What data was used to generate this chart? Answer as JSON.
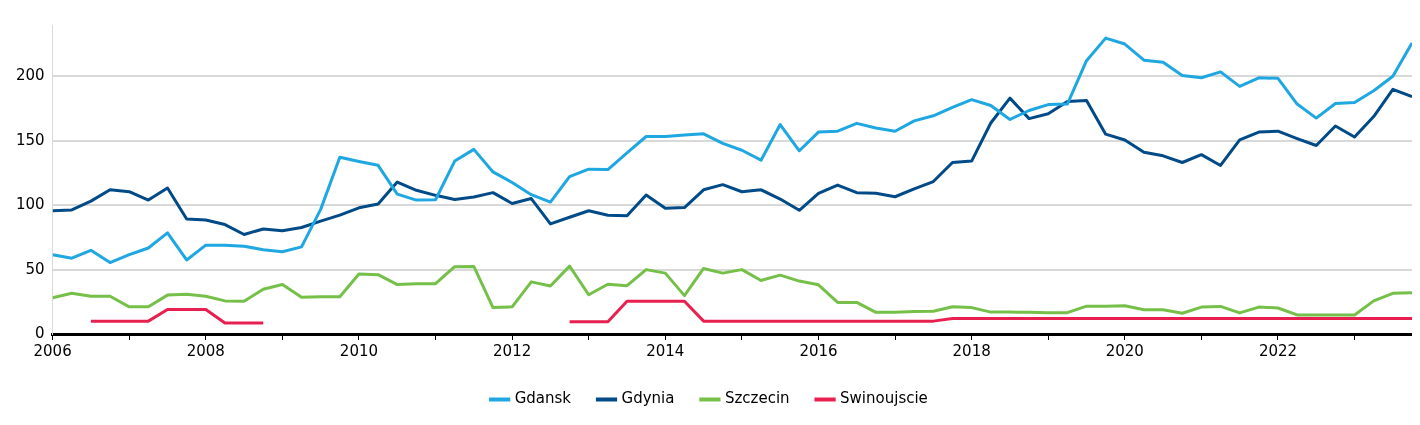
{
  "chart_data": {
    "type": "line",
    "x": [
      2006,
      2006.25,
      2006.5,
      2006.75,
      2007,
      2007.25,
      2007.5,
      2007.75,
      2008,
      2008.25,
      2008.5,
      2008.75,
      2009,
      2009.25,
      2009.5,
      2009.75,
      2010,
      2010.25,
      2010.5,
      2010.75,
      2011,
      2011.25,
      2011.5,
      2011.75,
      2012,
      2012.25,
      2012.5,
      2012.75,
      2013,
      2013.25,
      2013.5,
      2013.75,
      2014,
      2014.25,
      2014.5,
      2014.75,
      2015,
      2015.25,
      2015.5,
      2015.75,
      2016,
      2016.25,
      2016.5,
      2016.75,
      2017,
      2017.25,
      2017.5,
      2017.75,
      2018,
      2018.25,
      2018.5,
      2018.75,
      2019,
      2019.25,
      2019.5,
      2019.75,
      2020,
      2020.25,
      2020.5,
      2020.75,
      2021,
      2021.25,
      2021.5,
      2021.75,
      2022,
      2022.25,
      2022.5,
      2022.75,
      2023,
      2023.25,
      2023.5,
      2023.75
    ],
    "series": [
      {
        "name": "Gdansk",
        "color": "#1ea7e1",
        "values": [
          61.6,
          58.9,
          65,
          55.5,
          61.6,
          66.8,
          78.6,
          57.5,
          69,
          69,
          68.2,
          65.5,
          63.9,
          67.7,
          96.8,
          137.3,
          134,
          131,
          108.6,
          104,
          104.3,
          134.3,
          143.4,
          125.9,
          117.7,
          108.2,
          102.5,
          122.3,
          128,
          127.7,
          140.7,
          153.4,
          153.4,
          154.5,
          155.5,
          148,
          142.7,
          135,
          162.7,
          142.3,
          156.8,
          157.5,
          163.6,
          160,
          157.5,
          165.5,
          169.5,
          176,
          182,
          177.5,
          166.6,
          173.6,
          178.2,
          178.6,
          212.3,
          229.8,
          225.2,
          212.7,
          211,
          200.7,
          199,
          203.6,
          192.3,
          199,
          198.6,
          178.6,
          167.7,
          179,
          179.8,
          188.9,
          200.2,
          226
        ]
      },
      {
        "name": "Gdynia",
        "color": "#004b87",
        "values": [
          95.7,
          96.4,
          103.2,
          112,
          110.5,
          104,
          113.4,
          89.3,
          88.6,
          85,
          77.3,
          81.6,
          80.2,
          82.7,
          87.7,
          92.3,
          98,
          101,
          118,
          111.6,
          107.7,
          104.5,
          106.4,
          109.8,
          101.4,
          105.2,
          85.5,
          90.7,
          95.7,
          92.3,
          91.8,
          108,
          97.7,
          98.2,
          112,
          116,
          110.5,
          112,
          104.8,
          96.1,
          109.3,
          115.7,
          109.8,
          109.3,
          106.6,
          112.7,
          118.4,
          133.2,
          134.3,
          163.9,
          183.2,
          167.3,
          171.1,
          180.5,
          181.4,
          155.2,
          150.7,
          141.1,
          138.4,
          133.2,
          139.3,
          130.9,
          150.7,
          156.8,
          157.5,
          151.8,
          146.4,
          161.6,
          153,
          168.9,
          190,
          184.3
        ]
      },
      {
        "name": "Szczecin",
        "color": "#76c04a",
        "values": [
          28.2,
          31.6,
          29.3,
          29.3,
          21.1,
          21.1,
          30.2,
          30.9,
          29.3,
          25.7,
          25.5,
          34.8,
          38.4,
          28.6,
          28.9,
          28.9,
          46.6,
          46.1,
          38.4,
          39.1,
          39.1,
          52.3,
          52.5,
          20.5,
          21.1,
          40.5,
          37.3,
          52.7,
          30.5,
          38.6,
          37.5,
          50,
          47.3,
          29.8,
          50.9,
          47.3,
          50,
          41.6,
          45.7,
          41.1,
          38.2,
          24.5,
          24.5,
          16.8,
          16.8,
          17.5,
          17.7,
          21.1,
          20.5,
          17,
          17,
          16.8,
          16.6,
          16.6,
          21.6,
          21.6,
          22,
          18.9,
          18.9,
          16.1,
          20.9,
          21.4,
          16.4,
          20.9,
          20.2,
          14.8,
          14.8,
          14.8,
          14.8,
          25.7,
          31.6,
          32
        ]
      },
      {
        "name": "Swinoujscie",
        "color": "#e8204f",
        "values": [
          null,
          null,
          10,
          10,
          10,
          10,
          19,
          19,
          19,
          8.5,
          8.5,
          8.5,
          null,
          null,
          null,
          null,
          null,
          null,
          null,
          null,
          null,
          null,
          null,
          null,
          null,
          null,
          null,
          9.5,
          9.5,
          9.5,
          25.5,
          25.5,
          25.5,
          25.5,
          10,
          10,
          10,
          10,
          10,
          10,
          10,
          10,
          10,
          10,
          10,
          10,
          10,
          12,
          12,
          12,
          12,
          12,
          12,
          12,
          12,
          12,
          12,
          12,
          12,
          12,
          12,
          12,
          12,
          12,
          12,
          12,
          12,
          12,
          12,
          12,
          12,
          12
        ]
      }
    ],
    "xlim": [
      2006,
      2023.75
    ],
    "xticks": [
      2006,
      {
        "value": 2007,
        "label": null
      },
      2008,
      {
        "value": 2009,
        "label": null
      },
      2010,
      {
        "value": 2011,
        "label": null
      },
      2012,
      {
        "value": 2013,
        "label": null
      },
      2014,
      {
        "value": 2015,
        "label": null
      },
      2016,
      {
        "value": 2017,
        "label": null
      },
      2018,
      {
        "value": 2019,
        "label": null
      },
      2020,
      {
        "value": 2021,
        "label": null
      },
      2022,
      {
        "value": 2023,
        "label": null
      }
    ],
    "ylim": [
      0,
      240
    ],
    "yticks": [
      0,
      50,
      100,
      150,
      200
    ],
    "grid": "y",
    "legend": "bottom",
    "marker": "none"
  }
}
